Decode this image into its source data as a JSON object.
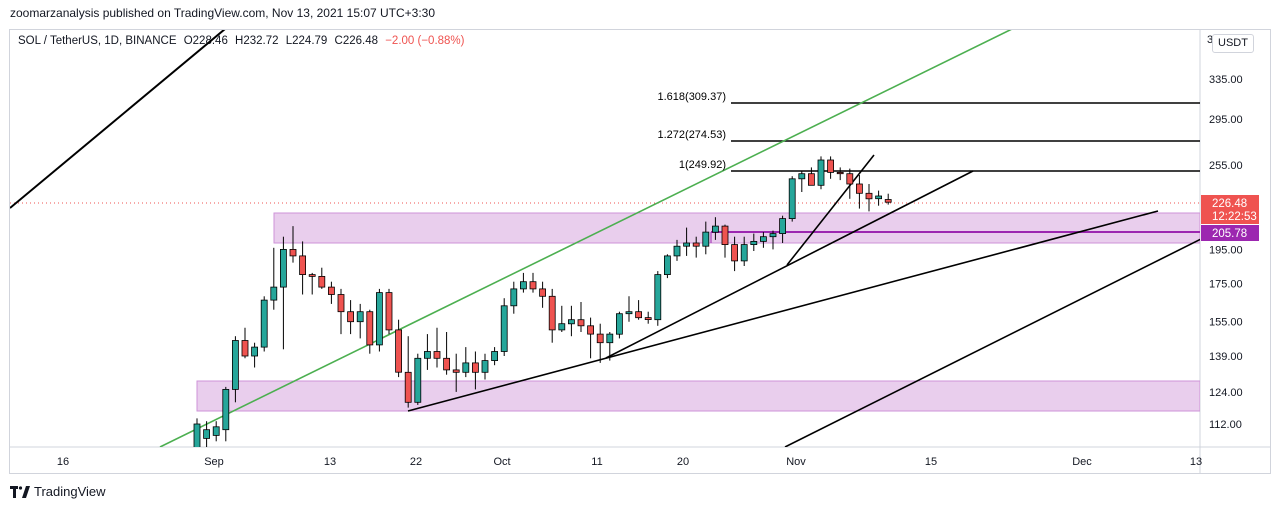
{
  "header": {
    "publisher_line": "zoomarzanalysis published on TradingView.com, Nov 13, 2021 15:07 UTC+3:30"
  },
  "legend": {
    "symbol": "SOL / TetherUS, 1D, BINANCE",
    "open": "O228.46",
    "high": "H232.72",
    "low": "L224.79",
    "close": "C226.48",
    "change": "−2.00 (−0.88%)"
  },
  "price_scale": {
    "currency": "USDT",
    "currency_prefix": "3"
  },
  "footer": {
    "brand": "TradingView"
  },
  "colors": {
    "up": "#26a69a",
    "down": "#ef5350",
    "zone_fill": "#e1bee7",
    "zone_stroke": "#ce93d8",
    "green_line": "#4caf50",
    "trend_line": "#000000",
    "purple_line": "#9c27b0",
    "last_price_bg": "#ef5350"
  },
  "chart_data": {
    "type": "candlestick",
    "y_ticks": [
      "335.00",
      "295.00",
      "255.00",
      "195.00",
      "175.00",
      "155.00",
      "139.00",
      "124.00",
      "112.00"
    ],
    "x_ticks": [
      "16",
      "Sep",
      "13",
      "22",
      "Oct",
      "11",
      "20",
      "Nov",
      "15",
      "Dec",
      "13"
    ],
    "last_price": "226.48",
    "countdown": "12:22:53",
    "level_label": "205.78",
    "fib_levels": [
      {
        "label": "1.618(309.37)",
        "value": 309.37
      },
      {
        "label": "1.272(274.53)",
        "value": 274.53
      },
      {
        "label": "1(249.92)",
        "value": 249.92
      }
    ],
    "candles": [
      {
        "o": 100,
        "h": 114,
        "l": 98,
        "c": 112
      },
      {
        "o": 107,
        "h": 113,
        "l": 104,
        "c": 110
      },
      {
        "o": 108,
        "h": 113,
        "l": 106,
        "c": 111
      },
      {
        "o": 110,
        "h": 126,
        "l": 106,
        "c": 125
      },
      {
        "o": 125,
        "h": 148,
        "l": 120,
        "c": 146
      },
      {
        "o": 146,
        "h": 152,
        "l": 138,
        "c": 139
      },
      {
        "o": 139,
        "h": 145,
        "l": 134,
        "c": 143
      },
      {
        "o": 143,
        "h": 168,
        "l": 141,
        "c": 166
      },
      {
        "o": 166,
        "h": 196,
        "l": 161,
        "c": 173
      },
      {
        "o": 173,
        "h": 203,
        "l": 142,
        "c": 195
      },
      {
        "o": 195,
        "h": 210,
        "l": 187,
        "c": 191
      },
      {
        "o": 191,
        "h": 200,
        "l": 169,
        "c": 180
      },
      {
        "o": 180,
        "h": 181,
        "l": 169,
        "c": 179
      },
      {
        "o": 179,
        "h": 184,
        "l": 172,
        "c": 173
      },
      {
        "o": 173,
        "h": 176,
        "l": 164,
        "c": 169
      },
      {
        "o": 169,
        "h": 172,
        "l": 149,
        "c": 160
      },
      {
        "o": 160,
        "h": 166,
        "l": 149,
        "c": 155
      },
      {
        "o": 155,
        "h": 164,
        "l": 147,
        "c": 160
      },
      {
        "o": 160,
        "h": 161,
        "l": 140,
        "c": 144
      },
      {
        "o": 144,
        "h": 172,
        "l": 141,
        "c": 170
      },
      {
        "o": 170,
        "h": 172,
        "l": 149,
        "c": 151
      },
      {
        "o": 151,
        "h": 156,
        "l": 130,
        "c": 132
      },
      {
        "o": 132,
        "h": 148,
        "l": 118,
        "c": 120
      },
      {
        "o": 120,
        "h": 140,
        "l": 119,
        "c": 138
      },
      {
        "o": 138,
        "h": 149,
        "l": 133,
        "c": 141
      },
      {
        "o": 141,
        "h": 152,
        "l": 134,
        "c": 138
      },
      {
        "o": 138,
        "h": 150,
        "l": 131,
        "c": 133
      },
      {
        "o": 133,
        "h": 140,
        "l": 124,
        "c": 132
      },
      {
        "o": 132,
        "h": 143,
        "l": 130,
        "c": 136
      },
      {
        "o": 136,
        "h": 141,
        "l": 125,
        "c": 132
      },
      {
        "o": 132,
        "h": 140,
        "l": 129,
        "c": 137
      },
      {
        "o": 137,
        "h": 143,
        "l": 135,
        "c": 141
      },
      {
        "o": 141,
        "h": 167,
        "l": 139,
        "c": 163
      },
      {
        "o": 163,
        "h": 176,
        "l": 159,
        "c": 172
      },
      {
        "o": 172,
        "h": 181,
        "l": 170,
        "c": 176
      },
      {
        "o": 176,
        "h": 181,
        "l": 170,
        "c": 172
      },
      {
        "o": 172,
        "h": 176,
        "l": 162,
        "c": 168
      },
      {
        "o": 168,
        "h": 172,
        "l": 145,
        "c": 151
      },
      {
        "o": 151,
        "h": 163,
        "l": 150,
        "c": 154
      },
      {
        "o": 154,
        "h": 163,
        "l": 148,
        "c": 156
      },
      {
        "o": 156,
        "h": 165,
        "l": 150,
        "c": 153
      },
      {
        "o": 153,
        "h": 157,
        "l": 138,
        "c": 149
      },
      {
        "o": 149,
        "h": 154,
        "l": 136,
        "c": 145
      },
      {
        "o": 145,
        "h": 150,
        "l": 137,
        "c": 149
      },
      {
        "o": 149,
        "h": 160,
        "l": 147,
        "c": 159
      },
      {
        "o": 159,
        "h": 168,
        "l": 155,
        "c": 160
      },
      {
        "o": 160,
        "h": 166,
        "l": 156,
        "c": 157
      },
      {
        "o": 157,
        "h": 160,
        "l": 154,
        "c": 156
      },
      {
        "o": 156,
        "h": 182,
        "l": 153,
        "c": 180
      },
      {
        "o": 180,
        "h": 192,
        "l": 178,
        "c": 191
      },
      {
        "o": 191,
        "h": 201,
        "l": 188,
        "c": 197
      },
      {
        "o": 197,
        "h": 209,
        "l": 191,
        "c": 199
      },
      {
        "o": 199,
        "h": 203,
        "l": 190,
        "c": 197
      },
      {
        "o": 197,
        "h": 213,
        "l": 192,
        "c": 206
      },
      {
        "o": 206,
        "h": 216,
        "l": 201,
        "c": 210
      },
      {
        "o": 210,
        "h": 211,
        "l": 190,
        "c": 198
      },
      {
        "o": 198,
        "h": 203,
        "l": 182,
        "c": 188
      },
      {
        "o": 188,
        "h": 203,
        "l": 185,
        "c": 198
      },
      {
        "o": 198,
        "h": 205,
        "l": 194,
        "c": 200
      },
      {
        "o": 200,
        "h": 206,
        "l": 196,
        "c": 203
      },
      {
        "o": 203,
        "h": 207,
        "l": 195,
        "c": 205
      },
      {
        "o": 205,
        "h": 217,
        "l": 199,
        "c": 215
      },
      {
        "o": 215,
        "h": 246,
        "l": 213,
        "c": 244
      },
      {
        "o": 244,
        "h": 250,
        "l": 234,
        "c": 248
      },
      {
        "o": 248,
        "h": 253,
        "l": 240,
        "c": 239
      },
      {
        "o": 239,
        "h": 262,
        "l": 236,
        "c": 259
      },
      {
        "o": 259,
        "h": 262,
        "l": 244,
        "c": 249
      },
      {
        "o": 249,
        "h": 253,
        "l": 243,
        "c": 248
      },
      {
        "o": 248,
        "h": 252,
        "l": 229,
        "c": 240
      },
      {
        "o": 240,
        "h": 247,
        "l": 222,
        "c": 233
      },
      {
        "o": 233,
        "h": 240,
        "l": 220,
        "c": 229
      },
      {
        "o": 229,
        "h": 235,
        "l": 224,
        "c": 231
      },
      {
        "o": 228.46,
        "h": 232.72,
        "l": 224.79,
        "c": 226.48
      }
    ]
  }
}
